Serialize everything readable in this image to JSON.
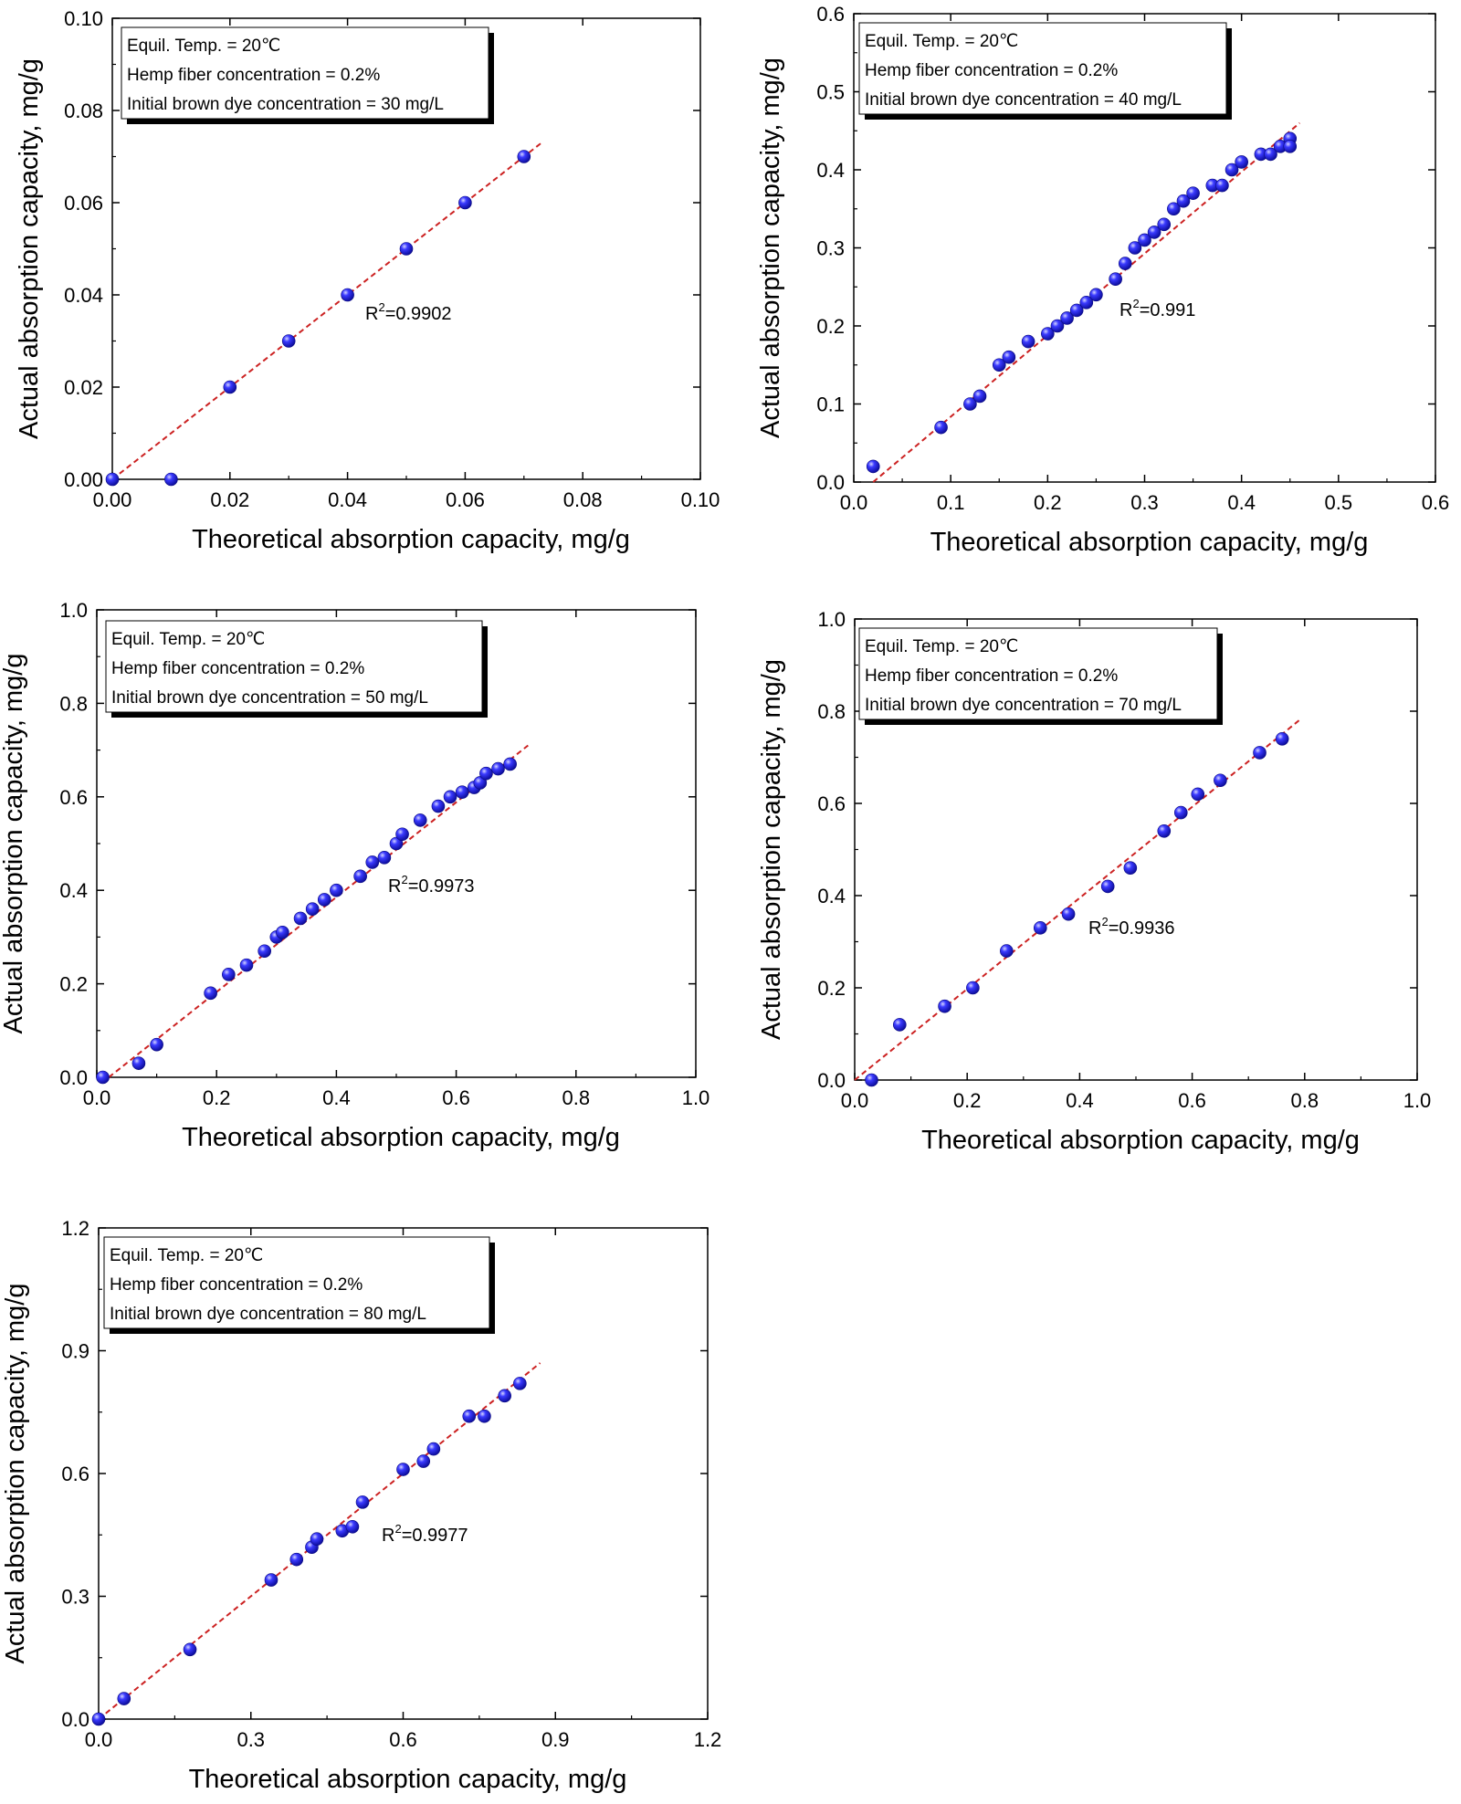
{
  "colors": {
    "point": "#1a1ae6",
    "point_highlight": "#c8c8ff",
    "fit_line": "#cc2222",
    "axis": "#000000",
    "legend_shadow": "#000000"
  },
  "chart_data": [
    {
      "type": "scatter",
      "xlabel": "Theoretical absorption capacity, mg/g",
      "ylabel": "Actual absorption capacity, mg/g",
      "xlim": [
        0,
        0.1
      ],
      "ylim": [
        0,
        0.1
      ],
      "xticks": [
        "0.00",
        "0.02",
        "0.04",
        "0.06",
        "0.08",
        "0.10"
      ],
      "yticks": [
        "0.00",
        "0.02",
        "0.04",
        "0.06",
        "0.08",
        "0.10"
      ],
      "legend": [
        "Equil. Temp. = 20℃",
        "Hemp fiber concentration = 0.2%",
        "Initial brown dye concentration = 30 mg/L"
      ],
      "legend_placement": "top-left",
      "r2_label": "R",
      "r2_sup": "2",
      "r2_value": "=0.9902",
      "fit_line": [
        [
          0.0,
          0.0
        ],
        [
          0.073,
          0.073
        ]
      ],
      "points": [
        [
          0.0,
          0.0
        ],
        [
          0.01,
          0.0
        ],
        [
          0.02,
          0.02
        ],
        [
          0.03,
          0.03
        ],
        [
          0.04,
          0.04
        ],
        [
          0.05,
          0.05
        ],
        [
          0.06,
          0.06
        ],
        [
          0.07,
          0.07
        ]
      ]
    },
    {
      "type": "scatter",
      "xlabel": "Theoretical absorption capacity, mg/g",
      "ylabel": "Actual absorption capacity, mg/g",
      "xlim": [
        0,
        0.6
      ],
      "ylim": [
        0,
        0.6
      ],
      "xticks": [
        "0.0",
        "0.1",
        "0.2",
        "0.3",
        "0.4",
        "0.5",
        "0.6"
      ],
      "yticks": [
        "0.0",
        "0.1",
        "0.2",
        "0.3",
        "0.4",
        "0.5",
        "0.6"
      ],
      "legend": [
        "Equil. Temp. = 20℃",
        "Hemp fiber concentration = 0.2%",
        "Initial brown dye concentration = 40 mg/L"
      ],
      "legend_placement": "top-left",
      "r2_label": "R",
      "r2_sup": "2",
      "r2_value": "=0.991",
      "fit_line": [
        [
          0.02,
          0.0
        ],
        [
          0.46,
          0.46
        ]
      ],
      "points": [
        [
          0.02,
          0.02
        ],
        [
          0.09,
          0.07
        ],
        [
          0.12,
          0.1
        ],
        [
          0.13,
          0.11
        ],
        [
          0.15,
          0.15
        ],
        [
          0.16,
          0.16
        ],
        [
          0.18,
          0.18
        ],
        [
          0.2,
          0.19
        ],
        [
          0.21,
          0.2
        ],
        [
          0.22,
          0.21
        ],
        [
          0.23,
          0.22
        ],
        [
          0.24,
          0.23
        ],
        [
          0.25,
          0.24
        ],
        [
          0.27,
          0.26
        ],
        [
          0.28,
          0.28
        ],
        [
          0.29,
          0.3
        ],
        [
          0.3,
          0.31
        ],
        [
          0.31,
          0.32
        ],
        [
          0.32,
          0.33
        ],
        [
          0.33,
          0.35
        ],
        [
          0.34,
          0.36
        ],
        [
          0.35,
          0.37
        ],
        [
          0.37,
          0.38
        ],
        [
          0.38,
          0.38
        ],
        [
          0.39,
          0.4
        ],
        [
          0.4,
          0.41
        ],
        [
          0.42,
          0.42
        ],
        [
          0.43,
          0.42
        ],
        [
          0.44,
          0.43
        ],
        [
          0.45,
          0.44
        ],
        [
          0.45,
          0.43
        ]
      ]
    },
    {
      "type": "scatter",
      "xlabel": "Theoretical absorption capacity, mg/g",
      "ylabel": "Actual absorption capacity, mg/g",
      "xlim": [
        0,
        1.0
      ],
      "ylim": [
        0,
        1.0
      ],
      "xticks": [
        "0.0",
        "0.2",
        "0.4",
        "0.6",
        "0.8",
        "1.0"
      ],
      "yticks": [
        "0.0",
        "0.2",
        "0.4",
        "0.6",
        "0.8",
        "1.0"
      ],
      "legend": [
        "Equil. Temp. = 20℃",
        "Hemp fiber concentration = 0.2%",
        "Initial brown dye concentration = 50 mg/L"
      ],
      "legend_placement": "top-left",
      "r2_label": "R",
      "r2_sup": "2",
      "r2_value": "=0.9973",
      "fit_line": [
        [
          0.02,
          0.0
        ],
        [
          0.72,
          0.71
        ]
      ],
      "points": [
        [
          0.01,
          0.0
        ],
        [
          0.07,
          0.03
        ],
        [
          0.1,
          0.07
        ],
        [
          0.19,
          0.18
        ],
        [
          0.22,
          0.22
        ],
        [
          0.25,
          0.24
        ],
        [
          0.28,
          0.27
        ],
        [
          0.3,
          0.3
        ],
        [
          0.31,
          0.31
        ],
        [
          0.34,
          0.34
        ],
        [
          0.36,
          0.36
        ],
        [
          0.38,
          0.38
        ],
        [
          0.4,
          0.4
        ],
        [
          0.44,
          0.43
        ],
        [
          0.46,
          0.46
        ],
        [
          0.48,
          0.47
        ],
        [
          0.5,
          0.5
        ],
        [
          0.51,
          0.52
        ],
        [
          0.54,
          0.55
        ],
        [
          0.57,
          0.58
        ],
        [
          0.59,
          0.6
        ],
        [
          0.61,
          0.61
        ],
        [
          0.63,
          0.62
        ],
        [
          0.64,
          0.63
        ],
        [
          0.65,
          0.65
        ],
        [
          0.67,
          0.66
        ],
        [
          0.69,
          0.67
        ]
      ]
    },
    {
      "type": "scatter",
      "xlabel": "Theoretical absorption capacity, mg/g",
      "ylabel": "Actual absorption capacity, mg/g",
      "xlim": [
        0,
        1.0
      ],
      "ylim": [
        0,
        1.0
      ],
      "xticks": [
        "0.0",
        "0.2",
        "0.4",
        "0.6",
        "0.8",
        "1.0"
      ],
      "yticks": [
        "0.0",
        "0.2",
        "0.4",
        "0.6",
        "0.8",
        "1.0"
      ],
      "legend": [
        "Equil. Temp. = 20℃",
        "Hemp fiber concentration = 0.2%",
        "Initial brown dye concentration = 70 mg/L"
      ],
      "legend_placement": "top-left",
      "r2_label": "R",
      "r2_sup": "2",
      "r2_value": "=0.9936",
      "fit_line": [
        [
          0.0,
          0.0
        ],
        [
          0.79,
          0.78
        ]
      ],
      "points": [
        [
          0.03,
          0.0
        ],
        [
          0.08,
          0.12
        ],
        [
          0.16,
          0.16
        ],
        [
          0.21,
          0.2
        ],
        [
          0.27,
          0.28
        ],
        [
          0.33,
          0.33
        ],
        [
          0.38,
          0.36
        ],
        [
          0.45,
          0.42
        ],
        [
          0.49,
          0.46
        ],
        [
          0.55,
          0.54
        ],
        [
          0.58,
          0.58
        ],
        [
          0.61,
          0.62
        ],
        [
          0.65,
          0.65
        ],
        [
          0.72,
          0.71
        ],
        [
          0.76,
          0.74
        ]
      ]
    },
    {
      "type": "scatter",
      "xlabel": "Theoretical absorption capacity, mg/g",
      "ylabel": "Actual absorption capacity, mg/g",
      "xlim": [
        0,
        1.2
      ],
      "ylim": [
        0,
        1.2
      ],
      "xticks": [
        "0.0",
        "0.3",
        "0.6",
        "0.9",
        "1.2"
      ],
      "yticks": [
        "0.0",
        "0.3",
        "0.6",
        "0.9",
        "1.2"
      ],
      "legend": [
        "Equil. Temp. = 20℃",
        "Hemp fiber concentration = 0.2%",
        "Initial brown dye concentration = 80 mg/L"
      ],
      "legend_placement": "top-left",
      "r2_label": "R",
      "r2_sup": "2",
      "r2_value": "=0.9977",
      "fit_line": [
        [
          0.0,
          0.0
        ],
        [
          0.87,
          0.87
        ]
      ],
      "points": [
        [
          0.0,
          0.0
        ],
        [
          0.05,
          0.05
        ],
        [
          0.18,
          0.17
        ],
        [
          0.34,
          0.34
        ],
        [
          0.39,
          0.39
        ],
        [
          0.42,
          0.42
        ],
        [
          0.43,
          0.44
        ],
        [
          0.48,
          0.46
        ],
        [
          0.5,
          0.47
        ],
        [
          0.52,
          0.53
        ],
        [
          0.6,
          0.61
        ],
        [
          0.64,
          0.63
        ],
        [
          0.66,
          0.66
        ],
        [
          0.73,
          0.74
        ],
        [
          0.76,
          0.74
        ],
        [
          0.8,
          0.79
        ],
        [
          0.83,
          0.82
        ]
      ]
    }
  ]
}
